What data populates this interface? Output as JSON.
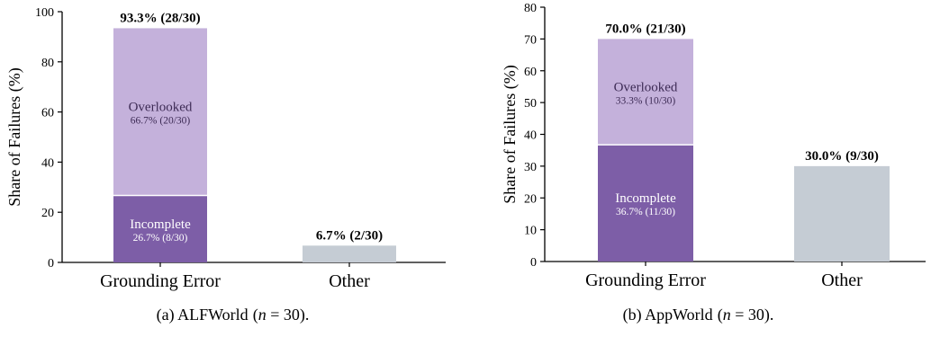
{
  "colors": {
    "incomplete": "#7d5ea7",
    "overlooked": "#c4b1db",
    "other": "#c5ccd4",
    "axis": "#000000",
    "inner_dark_text": "#3d2b55",
    "inner_light_text": "#ffffff"
  },
  "chart_data": [
    {
      "type": "bar",
      "stacked": true,
      "ylabel": "Share of Failures (%)",
      "ylim": [
        0,
        100
      ],
      "yticks": [
        "0",
        "20",
        "40",
        "60",
        "80",
        "100"
      ],
      "categories": [
        "Grounding Error",
        "Other"
      ],
      "series": [
        {
          "name": "Incomplete",
          "values": [
            26.7,
            0
          ],
          "labels": [
            "26.7%  (8/30)",
            ""
          ]
        },
        {
          "name": "Overlooked",
          "values": [
            66.7,
            0
          ],
          "labels": [
            "66.7%  (20/30)",
            ""
          ]
        },
        {
          "name": "Other",
          "values": [
            0,
            6.7
          ]
        }
      ],
      "bar_labels": [
        "93.3%  (28/30)",
        "6.7%  (2/30)"
      ],
      "caption": {
        "prefix": "(a) ALFWorld",
        "paren_open": "(",
        "var": "n",
        "rest": " = 30)."
      }
    },
    {
      "type": "bar",
      "stacked": true,
      "ylabel": "Share of Failures (%)",
      "ylim": [
        0,
        80
      ],
      "yticks": [
        "0",
        "10",
        "20",
        "30",
        "40",
        "50",
        "60",
        "70",
        "80"
      ],
      "categories": [
        "Grounding Error",
        "Other"
      ],
      "series": [
        {
          "name": "Incomplete",
          "values": [
            36.7,
            0
          ],
          "labels": [
            "36.7%  (11/30)",
            ""
          ]
        },
        {
          "name": "Overlooked",
          "values": [
            33.3,
            0
          ],
          "labels": [
            "33.3%  (10/30)",
            ""
          ]
        },
        {
          "name": "Other",
          "values": [
            0,
            30.0
          ]
        }
      ],
      "bar_labels": [
        "70.0%  (21/30)",
        "30.0%  (9/30)"
      ],
      "caption": {
        "prefix": "(b) AppWorld",
        "paren_open": "(",
        "var": "n",
        "rest": " = 30)."
      }
    }
  ]
}
